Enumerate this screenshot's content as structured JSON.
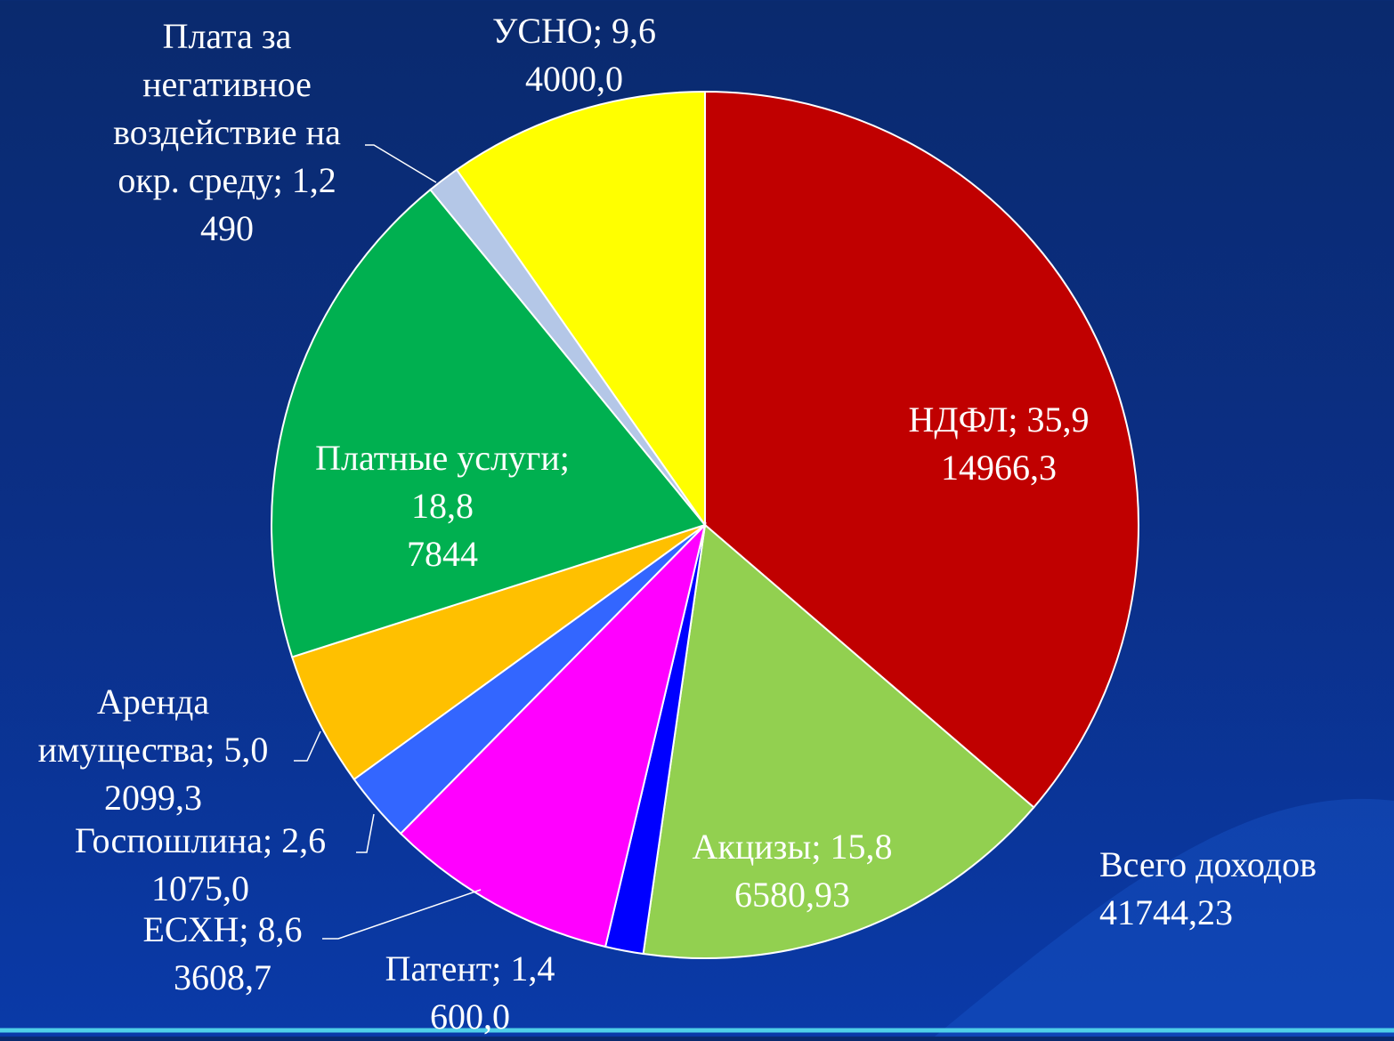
{
  "chart_data": {
    "type": "pie",
    "categories": [
      "НДФЛ",
      "Акцизы",
      "Патент",
      "ЕСХН",
      "Госпошлина",
      "Аренда имущества",
      "Платные услуги",
      "Плата за негативное воздействие на окр. среду",
      "УСНО"
    ],
    "values": [
      35.9,
      15.8,
      1.4,
      8.6,
      2.6,
      5.0,
      18.8,
      1.2,
      9.6
    ],
    "value_labels": [
      "35,9",
      "15,8",
      "1,4",
      "8,6",
      "2,6",
      "5,0",
      "18,8",
      "1,2",
      "9,6"
    ],
    "amounts": [
      14966.3,
      6580.93,
      600.0,
      3608.7,
      1075.0,
      2099.3,
      7844,
      490,
      4000.0
    ],
    "amount_labels": [
      "14966,3",
      "6580,93",
      "600,0",
      "3608,7",
      "1075,0",
      "2099,3",
      "7844",
      "490",
      "4000,0"
    ],
    "separator": "; ",
    "colors": [
      "#c00000",
      "#92d050",
      "#0000ff",
      "#ff00ff",
      "#3366ff",
      "#ffc000",
      "#00b050",
      "#b4c7e7",
      "#ffff00"
    ],
    "total": {
      "label": "Всего доходов",
      "value": 41744.23,
      "value_label": "41744,23"
    }
  }
}
